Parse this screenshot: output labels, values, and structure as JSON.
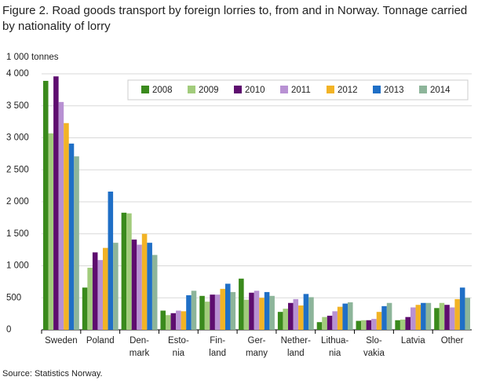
{
  "chart_data": {
    "type": "bar",
    "title": "Figure 2. Road goods transport by foreign lorries to, from and in Norway. Tonnage carried by nationality of lorry",
    "y_label": "1 000 tonnes",
    "source": "Source: Statistics Norway.",
    "categories": [
      [
        "Sweden"
      ],
      [
        "Poland"
      ],
      [
        "Den-",
        "mark"
      ],
      [
        "Esto-",
        "nia"
      ],
      [
        "Fin-",
        "land"
      ],
      [
        "Ger-",
        "many"
      ],
      [
        "Nether-",
        "land"
      ],
      [
        "Lithua-",
        "nia"
      ],
      [
        "Slo-",
        "vakia"
      ],
      [
        "Latvia"
      ],
      [
        "Other"
      ]
    ],
    "series": [
      {
        "name": "2008",
        "color": "#3a8a1c",
        "values": [
          3890,
          660,
          1830,
          300,
          530,
          800,
          280,
          120,
          140,
          150,
          340
        ]
      },
      {
        "name": "2009",
        "color": "#a2cc7c",
        "values": [
          3070,
          970,
          1820,
          230,
          440,
          470,
          330,
          200,
          150,
          160,
          420
        ]
      },
      {
        "name": "2010",
        "color": "#5e0d6f",
        "values": [
          3960,
          1210,
          1410,
          260,
          550,
          580,
          420,
          220,
          150,
          200,
          390
        ]
      },
      {
        "name": "2011",
        "color": "#b891d3",
        "values": [
          3560,
          1090,
          1330,
          300,
          550,
          610,
          480,
          290,
          170,
          350,
          350
        ]
      },
      {
        "name": "2012",
        "color": "#f2b325",
        "values": [
          3230,
          1280,
          1500,
          290,
          640,
          500,
          380,
          360,
          280,
          390,
          480
        ]
      },
      {
        "name": "2013",
        "color": "#1f6fc6",
        "values": [
          2910,
          2160,
          1360,
          540,
          720,
          590,
          560,
          410,
          370,
          420,
          660
        ]
      },
      {
        "name": "2014",
        "color": "#8db59a",
        "values": [
          2710,
          1360,
          1170,
          610,
          590,
          530,
          510,
          430,
          420,
          420,
          500
        ]
      }
    ],
    "ylim": [
      0,
      4000
    ],
    "yticks": [
      0,
      500,
      {
        "value": 1000,
        "label": "1 000"
      },
      {
        "value": 1500,
        "label": "1 500"
      },
      {
        "value": 2000,
        "label": "2 000"
      },
      {
        "value": 2500,
        "label": "2 500"
      },
      {
        "value": 3000,
        "label": "3 000"
      },
      {
        "value": 3500,
        "label": "3 500"
      },
      {
        "value": 4000,
        "label": "4 000"
      }
    ],
    "grid": true
  }
}
